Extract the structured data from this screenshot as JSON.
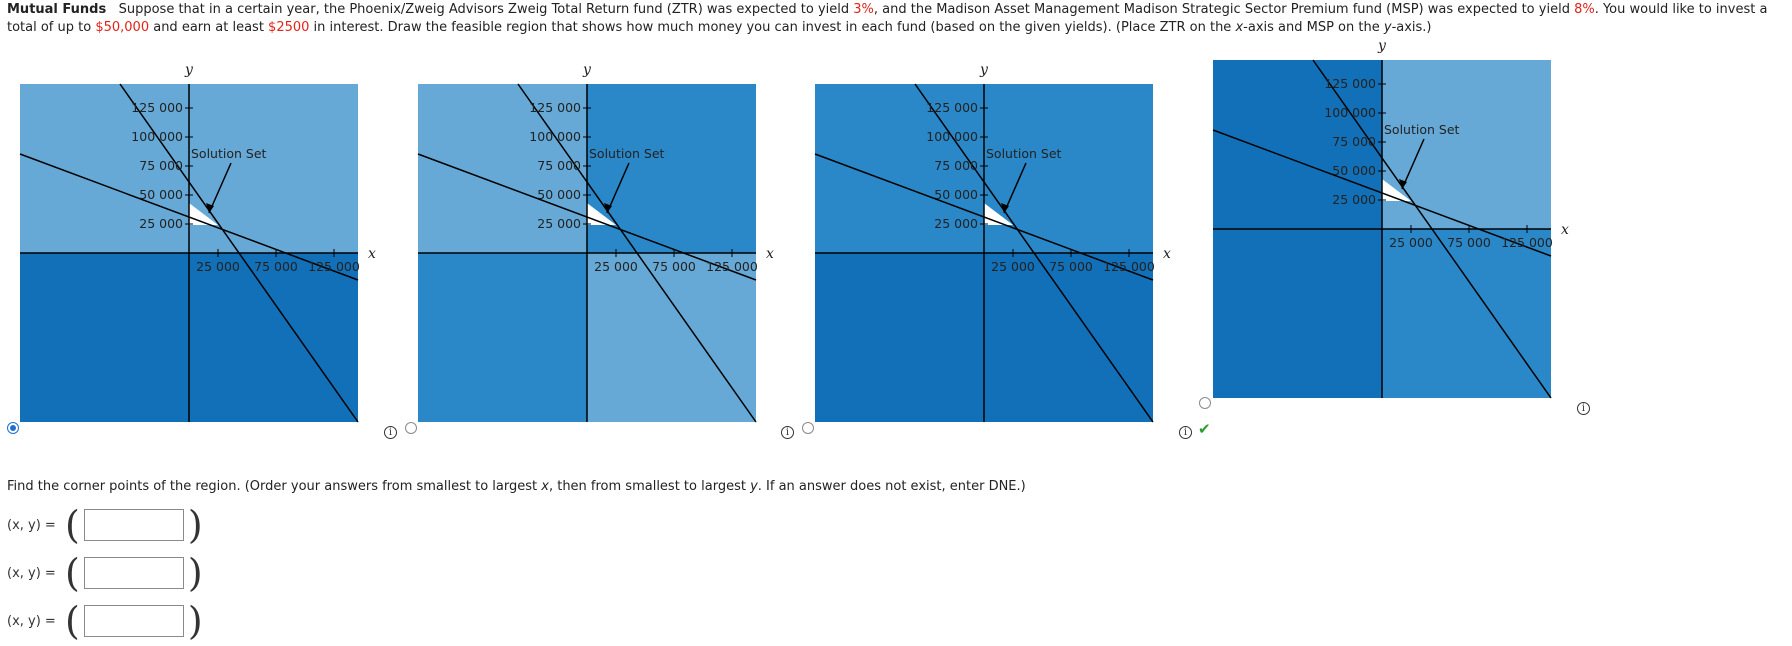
{
  "problem": {
    "title": "Mutual Funds",
    "text_1": "Suppose that in a certain year, the Phoenix/Zweig Advisors Zweig Total Return fund (ZTR) was expected to yield ",
    "yield_ztr": "3%",
    "text_2": ", and the Madison Asset Management Madison Strategic Sector Premium fund (MSP) was expected to yield ",
    "yield_msp": "8%",
    "text_3": ". You would like to invest a total of up to ",
    "total": "$50,000",
    "text_4": " and earn at least ",
    "interest": "$2500",
    "text_5": " in interest. Draw the feasible region that shows how much money you can invest in each fund (based on the given yields). (Place ZTR on the ",
    "x_var": "x",
    "text_6": "-axis and MSP on the ",
    "y_var": "y",
    "text_7": "-axis.)"
  },
  "graphs": [
    {
      "id": "option-1",
      "selected": true,
      "correct": false,
      "x_axis_label": "x",
      "y_axis_label": "y",
      "x_ticks": [
        "25 000",
        "75 000",
        "125 000"
      ],
      "y_ticks": [
        "125 000",
        "100 000",
        "75 000",
        "50 000",
        "25 000"
      ],
      "annotation": "Solution Set",
      "quadrant_colors": {
        "upper_left": "#66a9d6",
        "upper_right": "#66a9d6",
        "lower_left": "#1270b8",
        "lower_right": "#1270b8"
      }
    },
    {
      "id": "option-2",
      "selected": false,
      "correct": false,
      "x_axis_label": "x",
      "y_axis_label": "y",
      "x_ticks": [
        "25 000",
        "75 000",
        "125 000"
      ],
      "y_ticks": [
        "125 000",
        "100 000",
        "75 000",
        "50 000",
        "25 000"
      ],
      "annotation": "Solution Set",
      "quadrant_colors": {
        "upper_left": "#66a9d6",
        "upper_right": "#2a88c8",
        "lower_left": "#2a88c8",
        "lower_right": "#66a9d6"
      }
    },
    {
      "id": "option-3",
      "selected": false,
      "correct": true,
      "x_axis_label": "x",
      "y_axis_label": "y",
      "x_ticks": [
        "25 000",
        "75 000",
        "125 000"
      ],
      "y_ticks": [
        "125 000",
        "100 000",
        "75 000",
        "50 000",
        "25 000"
      ],
      "annotation": "Solution Set",
      "quadrant_colors": {
        "upper_left": "#2a88c8",
        "upper_right": "#2a88c8",
        "lower_left": "#1270b8",
        "lower_right": "#1270b8"
      }
    },
    {
      "id": "option-4",
      "selected": false,
      "correct": false,
      "x_axis_label": "x",
      "y_axis_label": "y",
      "x_ticks": [
        "25 000",
        "75 000",
        "125 000"
      ],
      "y_ticks": [
        "125 000",
        "100 000",
        "75 000",
        "50 000",
        "25 000"
      ],
      "annotation": "Solution Set",
      "quadrant_colors": {
        "upper_left": "#1270b8",
        "upper_right": "#66a9d6",
        "lower_left": "#1270b8",
        "lower_right": "#2a88c8"
      }
    }
  ],
  "corner_points": {
    "instruction_1": "Find the corner points of the region. (Order your answers from smallest to largest ",
    "x_var": "x",
    "instruction_2": ", then from smallest to largest ",
    "y_var": "y",
    "instruction_3": ". If an answer does not exist, enter DNE.)",
    "rows": [
      {
        "label": "(x, y) =",
        "value": ""
      },
      {
        "label": "(x, y) =",
        "value": ""
      },
      {
        "label": "(x, y) =",
        "value": ""
      }
    ]
  },
  "icons": {
    "info": "info-icon",
    "check": "checkmark-icon",
    "radio": "radio-button"
  }
}
